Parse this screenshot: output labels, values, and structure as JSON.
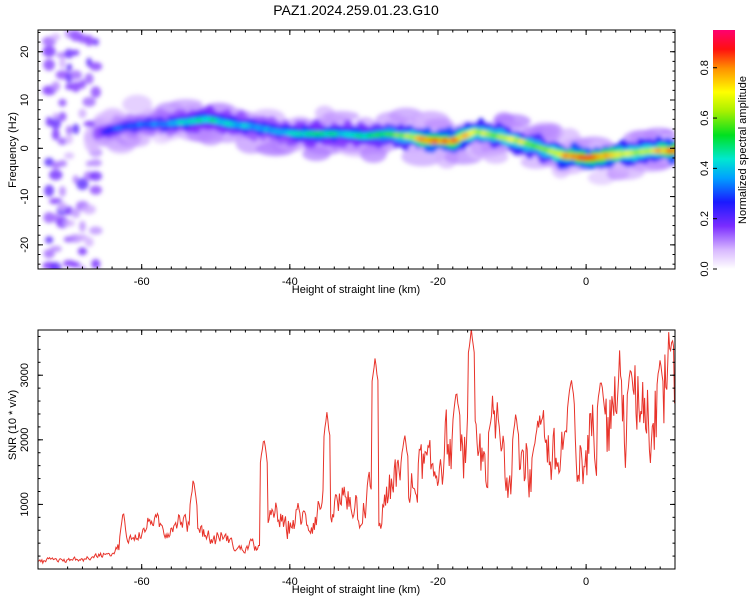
{
  "title": "PAZ1.2024.259.01.23.G10",
  "chart_data": [
    {
      "type": "heatmap",
      "xlabel": "Height of straight line (km)",
      "ylabel": "Frequency (Hz)",
      "xlim": [
        -74,
        12
      ],
      "ylim": [
        -25,
        24.5
      ],
      "xticks": [
        -60,
        -40,
        -20,
        0
      ],
      "yticks": [
        -20,
        -10,
        0,
        10,
        20
      ],
      "colorbar": {
        "label": "Normalized spectral amplitude",
        "range": [
          0,
          0.95
        ],
        "ticks": [
          0.0,
          0.2,
          0.4,
          0.6,
          0.8
        ]
      },
      "ridge": {
        "x": [
          -67,
          -64,
          -60,
          -57,
          -54,
          -51,
          -48,
          -45,
          -42,
          -39,
          -36,
          -33,
          -30,
          -27,
          -24,
          -21,
          -18,
          -15,
          -12,
          -9,
          -6,
          -3,
          0,
          3,
          6,
          9,
          12
        ],
        "y": [
          2,
          4,
          5,
          5,
          5.5,
          6,
          5,
          4.5,
          3.5,
          3,
          3,
          3,
          2.5,
          3,
          2.5,
          1.5,
          1.5,
          3.5,
          2.5,
          1.5,
          0,
          -1.5,
          -2,
          -1.5,
          -1,
          -0.5,
          -0.5
        ],
        "amplitude": [
          0.2,
          0.3,
          0.35,
          0.35,
          0.45,
          0.5,
          0.45,
          0.4,
          0.4,
          0.45,
          0.5,
          0.45,
          0.5,
          0.55,
          0.65,
          0.9,
          0.85,
          0.7,
          0.65,
          0.7,
          0.6,
          0.8,
          0.9,
          0.85,
          0.7,
          0.7,
          0.9
        ]
      }
    },
    {
      "type": "line",
      "xlabel": "Height of straight line (km)",
      "ylabel": "SNR (10 * v/v)",
      "xlim": [
        -74,
        12
      ],
      "ylim": [
        0,
        3700
      ],
      "xticks": [
        -60,
        -40,
        -20,
        0
      ],
      "yticks": [
        1000,
        2000,
        3000
      ],
      "color": "#e8332a",
      "series": [
        {
          "x": [
            -74,
            -72,
            -70,
            -68,
            -66,
            -64,
            -62,
            -60,
            -58,
            -56,
            -54,
            -52,
            -50,
            -48,
            -46,
            -44,
            -42,
            -40,
            -38,
            -36,
            -34,
            -32,
            -30,
            -28,
            -26,
            -24,
            -22,
            -20,
            -18,
            -16,
            -14,
            -12,
            -10,
            -8,
            -6,
            -4,
            -2,
            0,
            2,
            4,
            6,
            8,
            10,
            12
          ],
          "y": [
            100,
            150,
            120,
            160,
            200,
            250,
            450,
            600,
            700,
            620,
            800,
            550,
            500,
            400,
            300,
            420,
            800,
            700,
            750,
            900,
            1000,
            1050,
            1100,
            950,
            1250,
            1200,
            1450,
            1700,
            1800,
            1750,
            1850,
            1950,
            1800,
            1750,
            1850,
            1800,
            1950,
            1750,
            2200,
            2500,
            2450,
            2550,
            2700,
            2700
          ]
        }
      ],
      "peaks": {
        "x": [
          -62.5,
          -53,
          -43.5,
          -35,
          -28.5,
          -24.5,
          -17.5,
          -15.5,
          -9.5,
          -6.5,
          -2,
          2,
          6,
          10
        ],
        "y": [
          900,
          1400,
          2050,
          2400,
          3250,
          2100,
          2750,
          3700,
          2400,
          2300,
          2950,
          2950,
          3100,
          3250
        ]
      }
    }
  ]
}
